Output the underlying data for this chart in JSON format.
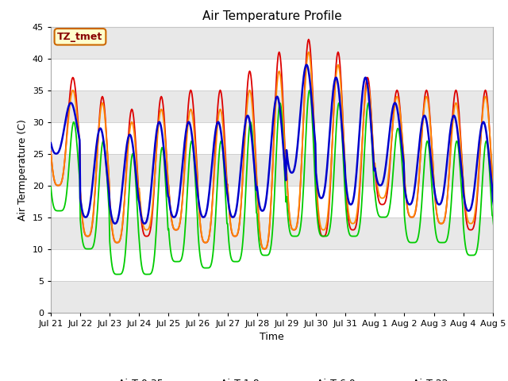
{
  "title": "Air Temperature Profile",
  "xlabel": "Time",
  "ylabel": "Air Termperature (C)",
  "ylim": [
    0,
    45
  ],
  "yticks": [
    0,
    5,
    10,
    15,
    20,
    25,
    30,
    35,
    40,
    45
  ],
  "bg_color": "#ffffff",
  "plot_bg": "#e8e8e8",
  "line_colors": {
    "AirT 0.35m": "#dd0000",
    "AirT 1.8m": "#ff8800",
    "AirT 6.0m": "#00cc00",
    "AirT 22m": "#0000cc"
  },
  "legend_label": "TZ_tmet",
  "legend_box_color": "#ffffcc",
  "legend_box_edge": "#cc6600",
  "x_labels": [
    "Jul 21",
    "Jul 22",
    "Jul 23",
    "Jul 24",
    "Jul 25",
    "Jul 26",
    "Jul 27",
    "Jul 28",
    "Jul 29",
    "Jul 30",
    "Jul 31",
    "Aug 1",
    "Aug 2",
    "Aug 3",
    "Aug 4",
    "Aug 5"
  ],
  "n_days": 16,
  "pts_per_day": 48,
  "mins_035": [
    20,
    12,
    11,
    12,
    13,
    11,
    12,
    10,
    13,
    12,
    13,
    17,
    15,
    14,
    13,
    14
  ],
  "maxs_035": [
    37,
    34,
    32,
    34,
    35,
    35,
    38,
    41,
    43,
    41,
    37,
    35,
    35,
    35,
    35,
    34
  ],
  "mins_18": [
    20,
    12,
    11,
    13,
    13,
    11,
    12,
    10,
    13,
    13,
    14,
    18,
    15,
    14,
    14,
    14
  ],
  "maxs_18": [
    35,
    33,
    30,
    32,
    32,
    32,
    35,
    38,
    41,
    39,
    36,
    34,
    34,
    33,
    34,
    33
  ],
  "mins_60": [
    16,
    10,
    6,
    6,
    8,
    7,
    8,
    9,
    12,
    12,
    12,
    15,
    11,
    11,
    9,
    11
  ],
  "maxs_60": [
    30,
    27,
    25,
    26,
    27,
    27,
    30,
    33,
    35,
    33,
    33,
    29,
    27,
    27,
    27,
    26
  ],
  "mins_22": [
    25,
    15,
    14,
    14,
    15,
    15,
    15,
    16,
    22,
    18,
    17,
    20,
    17,
    17,
    16,
    15
  ],
  "maxs_22": [
    33,
    29,
    28,
    30,
    30,
    30,
    31,
    34,
    39,
    37,
    37,
    33,
    31,
    31,
    30,
    29
  ]
}
